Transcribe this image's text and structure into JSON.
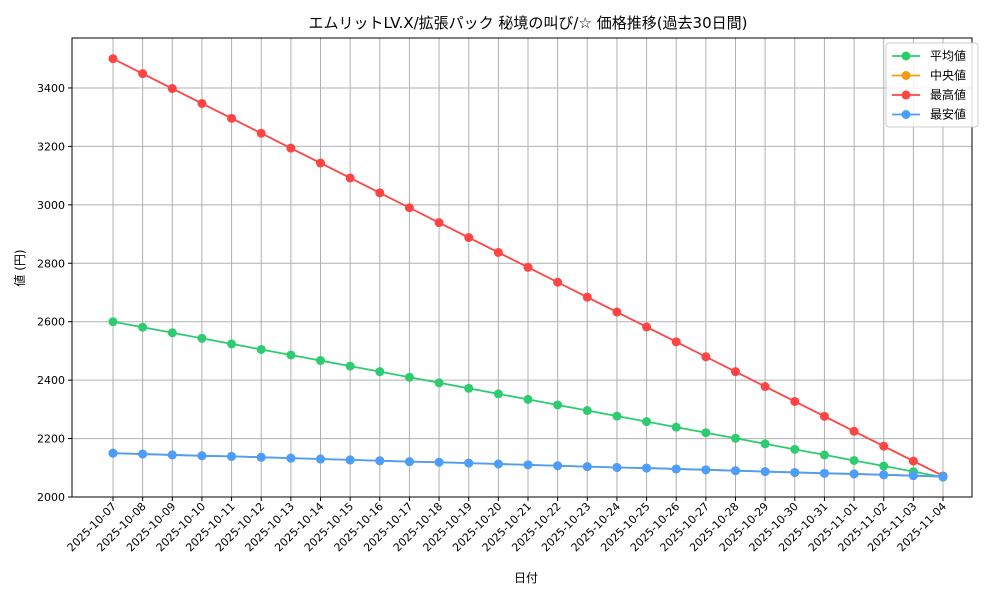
{
  "chart_data": {
    "type": "line",
    "title": "エムリットLV.X/拡張パック 秘境の叫び/☆ 価格推移(過去30日間)",
    "xlabel": "日付",
    "ylabel": "値 (円)",
    "ylim": [
      2000,
      3571
    ],
    "yticks": [
      2000,
      2200,
      2400,
      2600,
      2800,
      3000,
      3200,
      3400
    ],
    "grid": true,
    "legend_position": "top-right",
    "x": [
      "2025-10-07",
      "2025-10-08",
      "2025-10-09",
      "2025-10-10",
      "2025-10-11",
      "2025-10-12",
      "2025-10-13",
      "2025-10-14",
      "2025-10-15",
      "2025-10-16",
      "2025-10-17",
      "2025-10-18",
      "2025-10-19",
      "2025-10-20",
      "2025-10-21",
      "2025-10-22",
      "2025-10-23",
      "2025-10-24",
      "2025-10-25",
      "2025-10-26",
      "2025-10-27",
      "2025-10-28",
      "2025-10-29",
      "2025-10-30",
      "2025-10-31",
      "2025-11-01",
      "2025-11-02",
      "2025-11-03",
      "2025-11-04"
    ],
    "series": [
      {
        "name": "平均値",
        "color": "#2ecc71",
        "values": [
          2600,
          2581,
          2562,
          2543,
          2524,
          2505,
          2486,
          2467,
          2448,
          2429,
          2410,
          2391,
          2372,
          2353,
          2334,
          2315,
          2296,
          2277,
          2258,
          2239,
          2220,
          2201,
          2182,
          2163,
          2144,
          2125,
          2106,
          2087,
          2068
        ]
      },
      {
        "name": "中央値",
        "color": "#f39c12",
        "values": [
          2150,
          2147,
          2144,
          2141,
          2139,
          2136,
          2133,
          2130,
          2127,
          2124,
          2121,
          2119,
          2116,
          2113,
          2110,
          2107,
          2104,
          2101,
          2099,
          2096,
          2093,
          2090,
          2087,
          2084,
          2081,
          2079,
          2076,
          2073,
          2070
        ]
      },
      {
        "name": "最高値",
        "color": "#ff4444",
        "values": [
          3500,
          3449,
          3398,
          3347,
          3296,
          3245,
          3194,
          3143,
          3092,
          3041,
          2990,
          2939,
          2888,
          2837,
          2786,
          2735,
          2684,
          2633,
          2582,
          2531,
          2480,
          2429,
          2378,
          2327,
          2276,
          2225,
          2174,
          2123,
          2072
        ]
      },
      {
        "name": "最安値",
        "color": "#4a9eff",
        "values": [
          2150,
          2147,
          2144,
          2141,
          2139,
          2136,
          2133,
          2130,
          2127,
          2124,
          2121,
          2119,
          2116,
          2113,
          2110,
          2107,
          2104,
          2101,
          2099,
          2096,
          2093,
          2090,
          2087,
          2084,
          2081,
          2079,
          2076,
          2073,
          2070
        ]
      }
    ]
  }
}
